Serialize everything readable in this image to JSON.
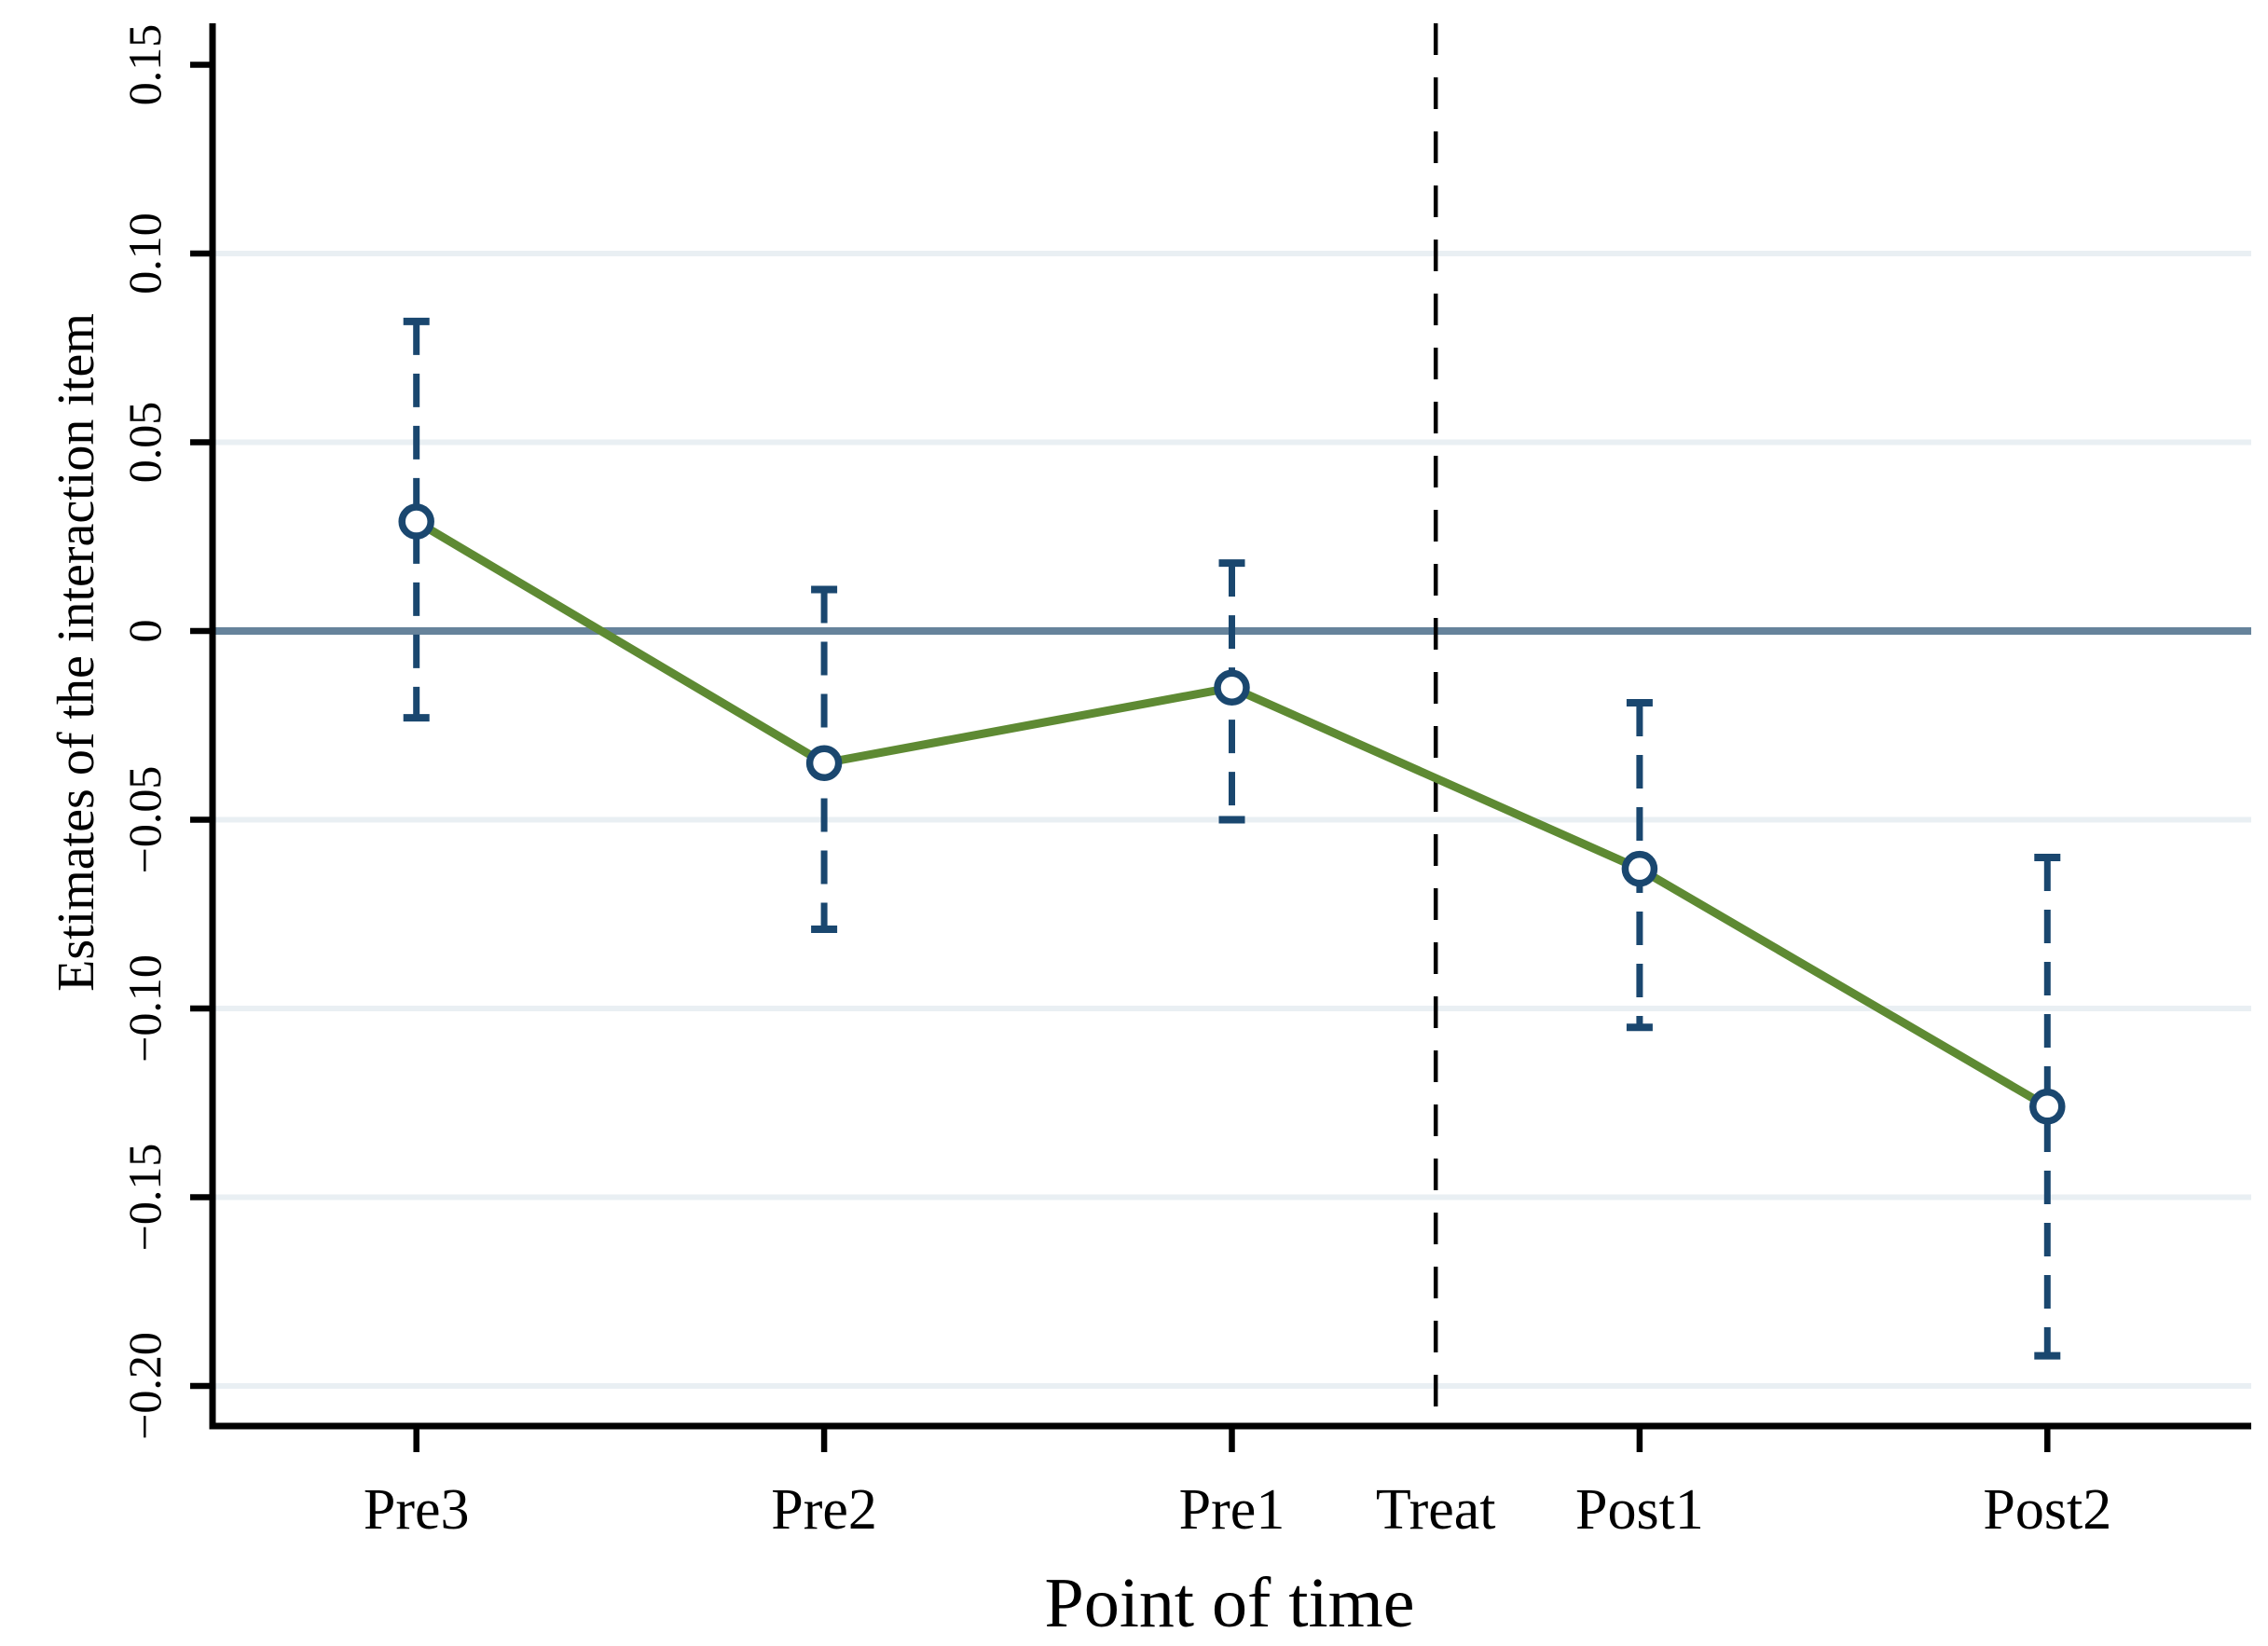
{
  "chart_data": {
    "type": "line",
    "title": "",
    "xlabel": "Point of time",
    "ylabel": "Estimates of the interaction item",
    "categories": [
      "Pre3",
      "Pre2",
      "Pre1",
      "Post1",
      "Post2"
    ],
    "series": [
      {
        "name": "Estimates of the interaction item",
        "values": [
          0.029,
          -0.035,
          -0.015,
          -0.063,
          -0.126
        ],
        "ci_low": [
          -0.023,
          -0.079,
          -0.05,
          -0.105,
          -0.192
        ],
        "ci_high": [
          0.082,
          0.011,
          0.018,
          -0.019,
          -0.06
        ],
        "marker": "open-circle",
        "error_bar_style": "dashed"
      }
    ],
    "reference_lines": {
      "zero_line_value": 0,
      "treatment_label": "Treat",
      "treatment_between": [
        "Pre1",
        "Post1"
      ],
      "treatment_line_style": "dashed-vertical"
    },
    "y_ticks": [
      0.15,
      0.1,
      0.05,
      0,
      -0.05,
      -0.1,
      -0.15,
      -0.2
    ],
    "y_tick_labels": [
      "0.15",
      "0.10",
      "0.05",
      "0",
      "−0.05",
      "−0.10",
      "−0.15",
      "−0.20"
    ],
    "gridline_values": [
      0.1,
      0.05,
      -0.05,
      -0.1,
      -0.15,
      -0.2
    ],
    "ylim": [
      -0.21,
      0.161
    ],
    "grid": true,
    "legend": "none",
    "colors": {
      "estimate_navy": "#1a476f",
      "line_green": "#5e8a33",
      "zero_line": "#66839b",
      "gridline": "#e9eff3",
      "axis": "#000000",
      "treat_line": "#000000",
      "background": "#ffffff"
    }
  }
}
